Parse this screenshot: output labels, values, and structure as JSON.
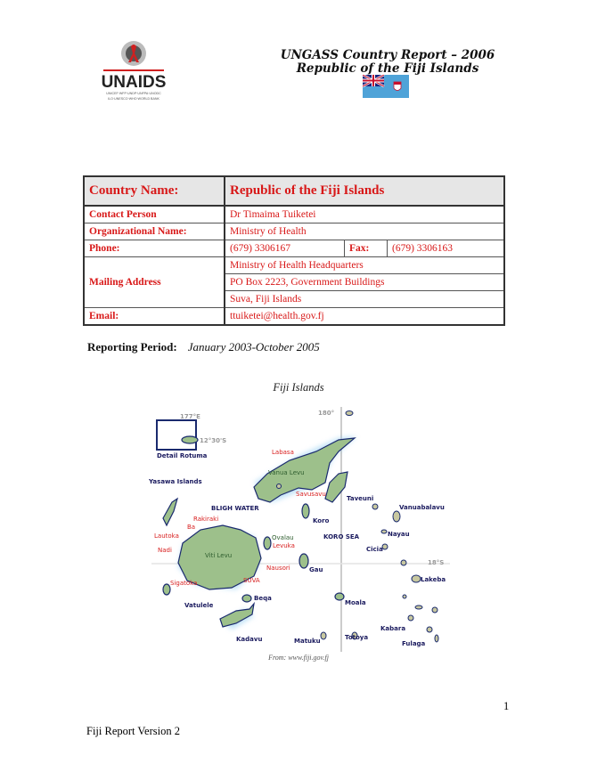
{
  "header": {
    "logo_text": "UNAIDS",
    "logo_subtext": "UNICEF·WFP·UNDP·UNFPA·UNODC ILO·UNESCO·WHO·WORLD BANK",
    "title_line1": "UNGASS Country Report – 2006",
    "title_line2": "Republic of the Fiji Islands"
  },
  "info_table": {
    "country_label": "Country Name:",
    "country_value": "Republic of the Fiji Islands",
    "contact_label": "Contact Person",
    "contact_value": "Dr Timaima Tuiketei",
    "org_label": "Organizational Name:",
    "org_value": "Ministry of Health",
    "phone_label": "Phone:",
    "phone_value": "(679) 3306167",
    "fax_label": "Fax:",
    "fax_value": "(679) 3306163",
    "mailing_label": "Mailing Address",
    "mailing_lines": [
      "Ministry of Health Headquarters",
      "PO Box 2223, Government Buildings",
      "Suva, Fiji Islands"
    ],
    "email_label": "Email:",
    "email_value": "ttuiketei@health.gov.fj"
  },
  "reporting_period": {
    "label": "Reporting Period:",
    "value": "January 2003-October 2005"
  },
  "figure": {
    "caption": "Fiji Islands",
    "source": "From: www.fiji.gov.fj",
    "labels": {
      "lon180": "180°",
      "lon177": "177°E",
      "lat125": "12°30'S",
      "lat18": "18°S",
      "rotuma": "Detail Rotuma",
      "yasawa": "Yasawa Islands",
      "labasa": "Labasa",
      "vanua_levu": "Vanua Levu",
      "savusavu": "Savusavu",
      "taveuni": "Taveuni",
      "bligh": "BLIGH WATER",
      "rakiraki": "Rakiraki",
      "ba": "Ba",
      "lautoka": "Lautoka",
      "nadi": "Nadi",
      "viti_levu": "Viti Levu",
      "koro": "Koro",
      "ovalau": "Ovalau",
      "levuka": "Levuka",
      "nausori": "Nausori",
      "gau": "Gau",
      "suva": "SUVA",
      "sigatoka": "Sigatoka",
      "beqa": "Beqa",
      "vatulele": "Vatulele",
      "kadavu": "Kadavu",
      "koro_sea": "KORO SEA",
      "vanuabalavu": "Vanuabalavu",
      "nayau": "Nayau",
      "cicia": "Cicia",
      "lakeba": "Lakeba",
      "moala": "Moala",
      "totoya": "Totoya",
      "matuku": "Matuku",
      "kabara": "Kabara",
      "fulaga": "Fulaga"
    }
  },
  "page_number": "1",
  "footer": "Fiji Report Version 2",
  "colors": {
    "table_text": "#d81818",
    "header_fill": "#e6e6e6",
    "flag_blue": "#4fa3d8"
  }
}
